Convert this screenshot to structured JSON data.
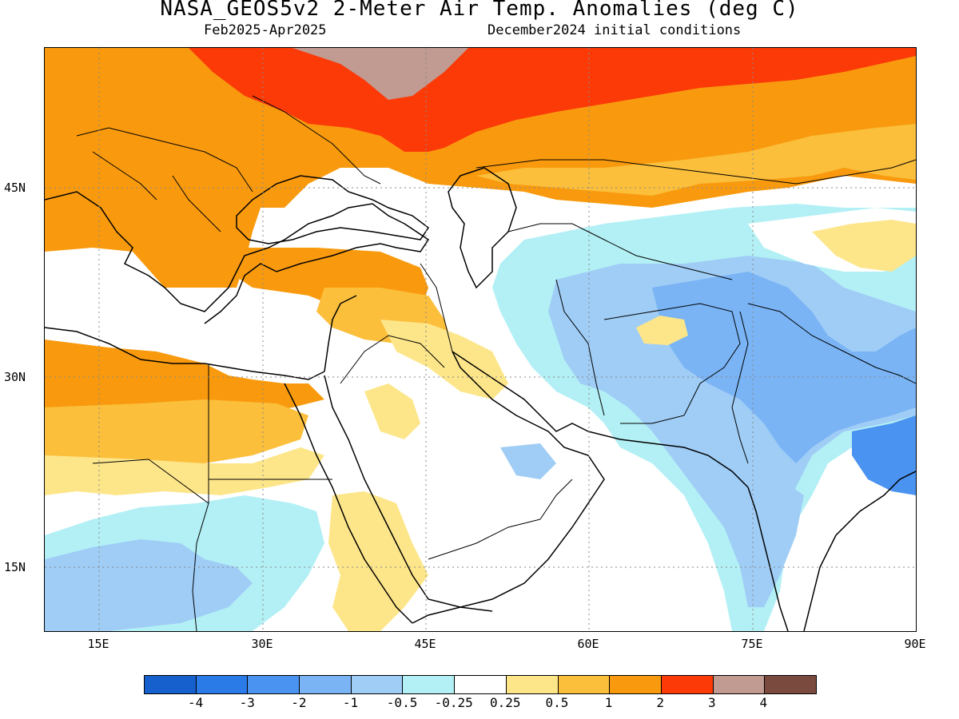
{
  "title": "NASA_GEOS5v2 2-Meter Air Temp. Anomalies (deg C)",
  "subtitle_left": "Feb2025-Apr2025",
  "subtitle_right": "December2024 initial conditions",
  "axes": {
    "lat_labels": [
      "45N",
      "30N",
      "15N"
    ],
    "lon_labels": [
      "15E",
      "30E",
      "45E",
      "60E",
      "75E",
      "90E"
    ]
  },
  "legend": {
    "colors": [
      "#1560cc",
      "#2a7be8",
      "#4a93f0",
      "#7ab4f5",
      "#9fcdf6",
      "#b3f0f5",
      "#ffffff",
      "#fde68a",
      "#fbbf3c",
      "#f99a0e",
      "#fb3a08",
      "#c19a92",
      "#7a4a3e"
    ],
    "labels": [
      "-4",
      "-3",
      "-2",
      "-1",
      "-0.5",
      "-0.25",
      "0.25",
      "0.5",
      "1",
      "2",
      "3",
      "4"
    ]
  },
  "map_colors": {
    "brown": "#c19a92",
    "red": "#fb3a08",
    "orange": "#f99a0e",
    "lightorange": "#fbbf3c",
    "yellow": "#fde68a",
    "white": "#ffffff",
    "cyan": "#b3f0f5",
    "lightblue": "#9fcdf6",
    "medblue": "#7ab4f5",
    "blue": "#4a93f0"
  }
}
